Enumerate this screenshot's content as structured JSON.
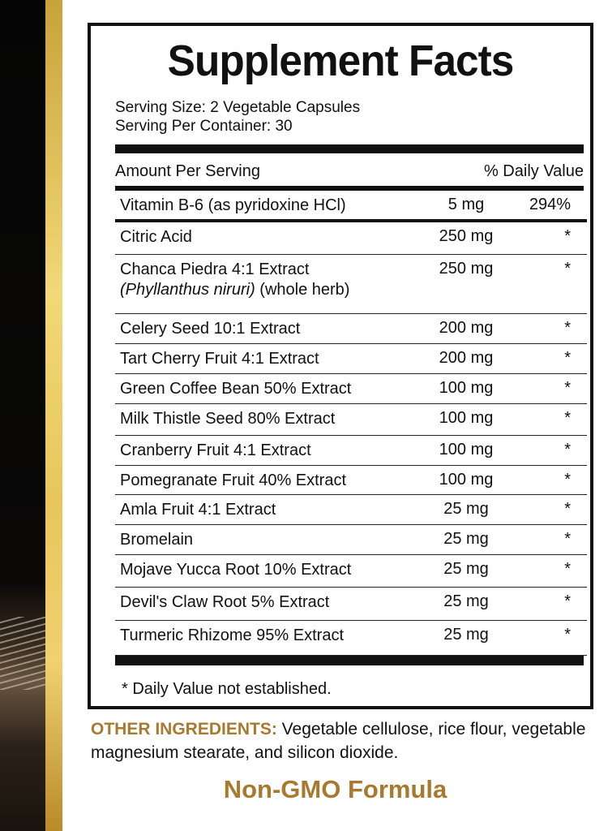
{
  "title": "Supplement Facts",
  "serving_size": "Serving Size: 2 Vegetable Capsules",
  "serving_per_container": "Serving Per Container: 30",
  "header": {
    "amount": "Amount Per Serving",
    "dv": "% Daily Value"
  },
  "rows": [
    {
      "name": "Vitamin B-6 (as pyridoxine HCl)",
      "amount": "5 mg",
      "dv": "294%"
    },
    {
      "name": "Citric Acid",
      "amount": "250 mg",
      "dv": "*"
    },
    {
      "name": "Chanca Piedra 4:1 Extract",
      "name_italic": "(Phyllanthus niruri)",
      "name_suffix": " (whole herb)",
      "amount": "250 mg",
      "dv": "*"
    },
    {
      "name": "Celery Seed 10:1 Extract",
      "amount": "200 mg",
      "dv": "*"
    },
    {
      "name": "Tart Cherry Fruit 4:1 Extract",
      "amount": "200 mg",
      "dv": "*"
    },
    {
      "name": "Green Coffee Bean 50% Extract",
      "amount": "100 mg",
      "dv": "*"
    },
    {
      "name": "Milk Thistle Seed 80% Extract",
      "amount": "100 mg",
      "dv": "*"
    },
    {
      "name": "Cranberry Fruit 4:1 Extract",
      "amount": "100 mg",
      "dv": "*"
    },
    {
      "name": "Pomegranate Fruit 40% Extract",
      "amount": "100 mg",
      "dv": "*"
    },
    {
      "name": "Amla Fruit 4:1 Extract",
      "amount": "25 mg",
      "dv": "*"
    },
    {
      "name": "Bromelain",
      "amount": "25 mg",
      "dv": "*"
    },
    {
      "name": "Mojave Yucca Root 10% Extract",
      "amount": "25 mg",
      "dv": "*"
    },
    {
      "name": "Devil's Claw Root 5% Extract",
      "amount": "25 mg",
      "dv": "*"
    },
    {
      "name": "Turmeric Rhizome 95% Extract",
      "amount": "25 mg",
      "dv": "*"
    }
  ],
  "footnote": "* Daily Value not established.",
  "other_label": "OTHER INGREDIENTS:",
  "other_text": " Vegetable cellulose, rice flour, vegetable magnesium stearate, and silicon dioxide.",
  "non_gmo": "Non-GMO Formula",
  "colors": {
    "gold_text": "#a87a30",
    "gold_strip": "#e8c65c"
  }
}
